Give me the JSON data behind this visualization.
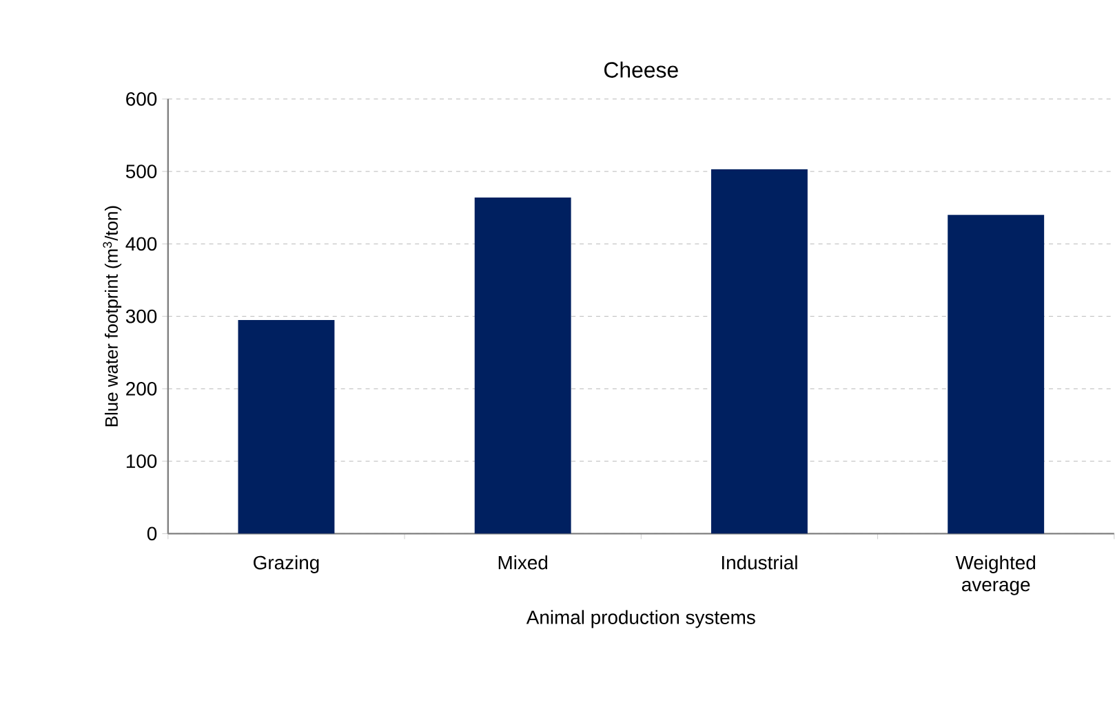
{
  "chart_data": {
    "type": "bar",
    "title": "Cheese",
    "xlabel": "Animal production systems",
    "ylabel": "Blue water footprint (m$^{3}$/ton)",
    "categories": [
      "Grazing",
      "Mixed",
      "Industrial",
      "Weighted average"
    ],
    "values": [
      295,
      464,
      503,
      440
    ],
    "color": "#002060",
    "ylim": [
      0,
      600
    ],
    "yticks": [
      0,
      100,
      200,
      300,
      400,
      500,
      600
    ],
    "grid": "y"
  }
}
